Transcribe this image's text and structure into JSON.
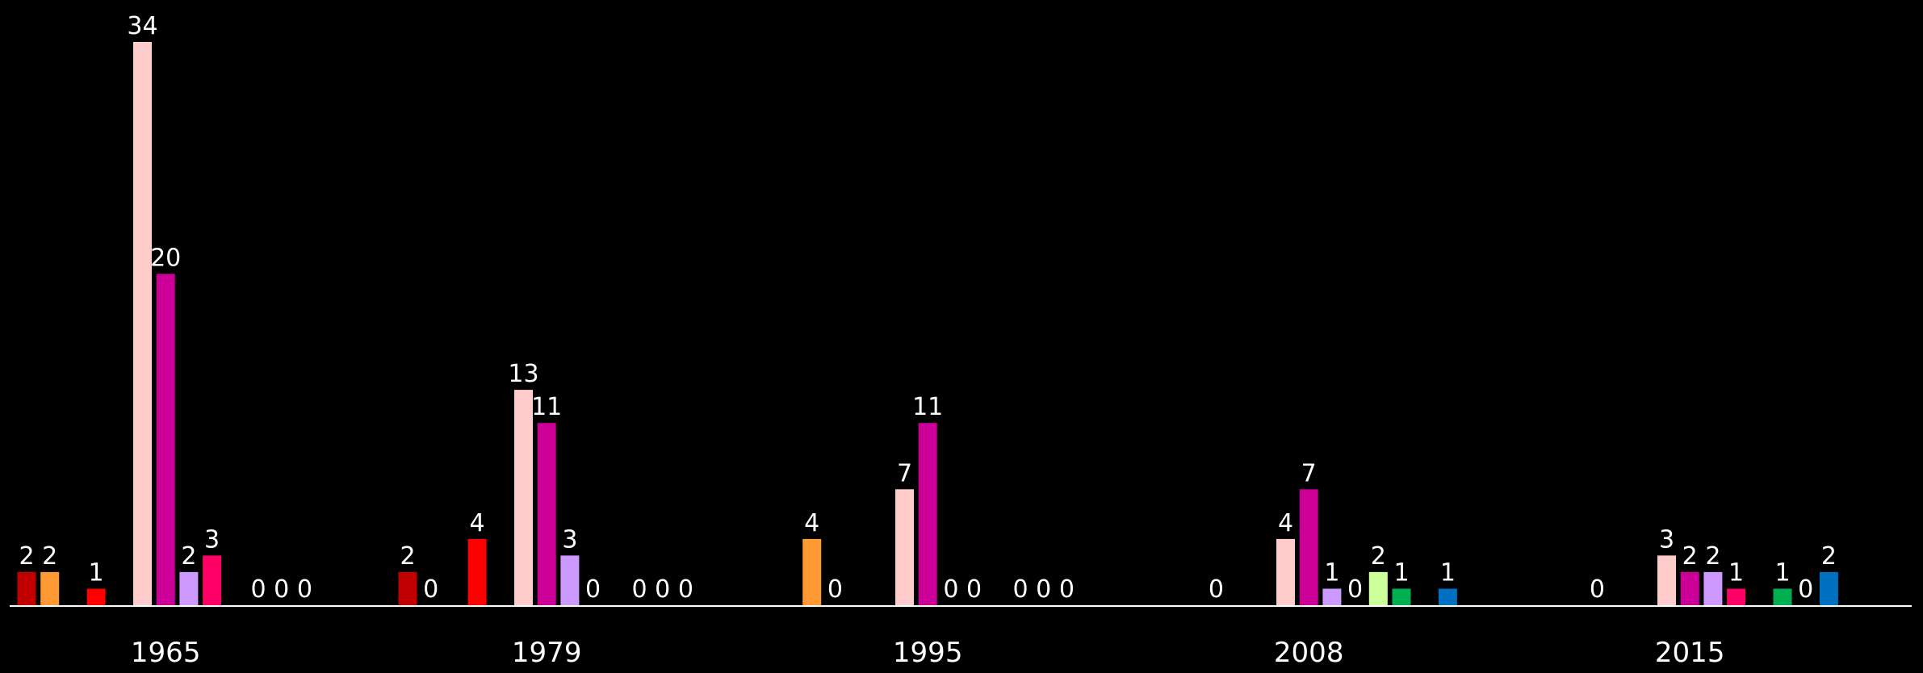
{
  "chart_data": {
    "type": "bar",
    "categories": [
      "1965",
      "1979",
      "1995",
      "2008",
      "2015"
    ],
    "ylim": [
      0,
      34
    ],
    "grid": false,
    "legend": "none",
    "series": [
      {
        "color": "#c00000",
        "values": [
          2,
          2,
          null,
          null,
          null
        ]
      },
      {
        "color": "#ff9933",
        "values": [
          2,
          0,
          4,
          null,
          null
        ]
      },
      {
        "color": "#000000",
        "values": [
          null,
          null,
          0,
          0,
          0
        ]
      },
      {
        "color": "#ff0000",
        "values": [
          1,
          4,
          null,
          null,
          null
        ]
      },
      {
        "color": "#000000",
        "values": [
          null,
          null,
          null,
          null,
          null
        ]
      },
      {
        "color": "#ffcccc",
        "values": [
          34,
          13,
          7,
          4,
          3
        ]
      },
      {
        "color": "#cc0099",
        "values": [
          20,
          11,
          11,
          7,
          2
        ]
      },
      {
        "color": "#cc99ff",
        "values": [
          2,
          3,
          0,
          1,
          2
        ]
      },
      {
        "color": "#ff0066",
        "values": [
          3,
          0,
          0,
          0,
          1
        ]
      },
      {
        "color": "#ccff99",
        "values": [
          null,
          null,
          null,
          2,
          null
        ]
      },
      {
        "color": "#00b050",
        "values": [
          0,
          0,
          0,
          1,
          1
        ]
      },
      {
        "color": "#00ff00",
        "values": [
          0,
          0,
          0,
          null,
          0
        ]
      },
      {
        "color": "#0070c0",
        "values": [
          0,
          0,
          0,
          1,
          2
        ]
      }
    ]
  }
}
